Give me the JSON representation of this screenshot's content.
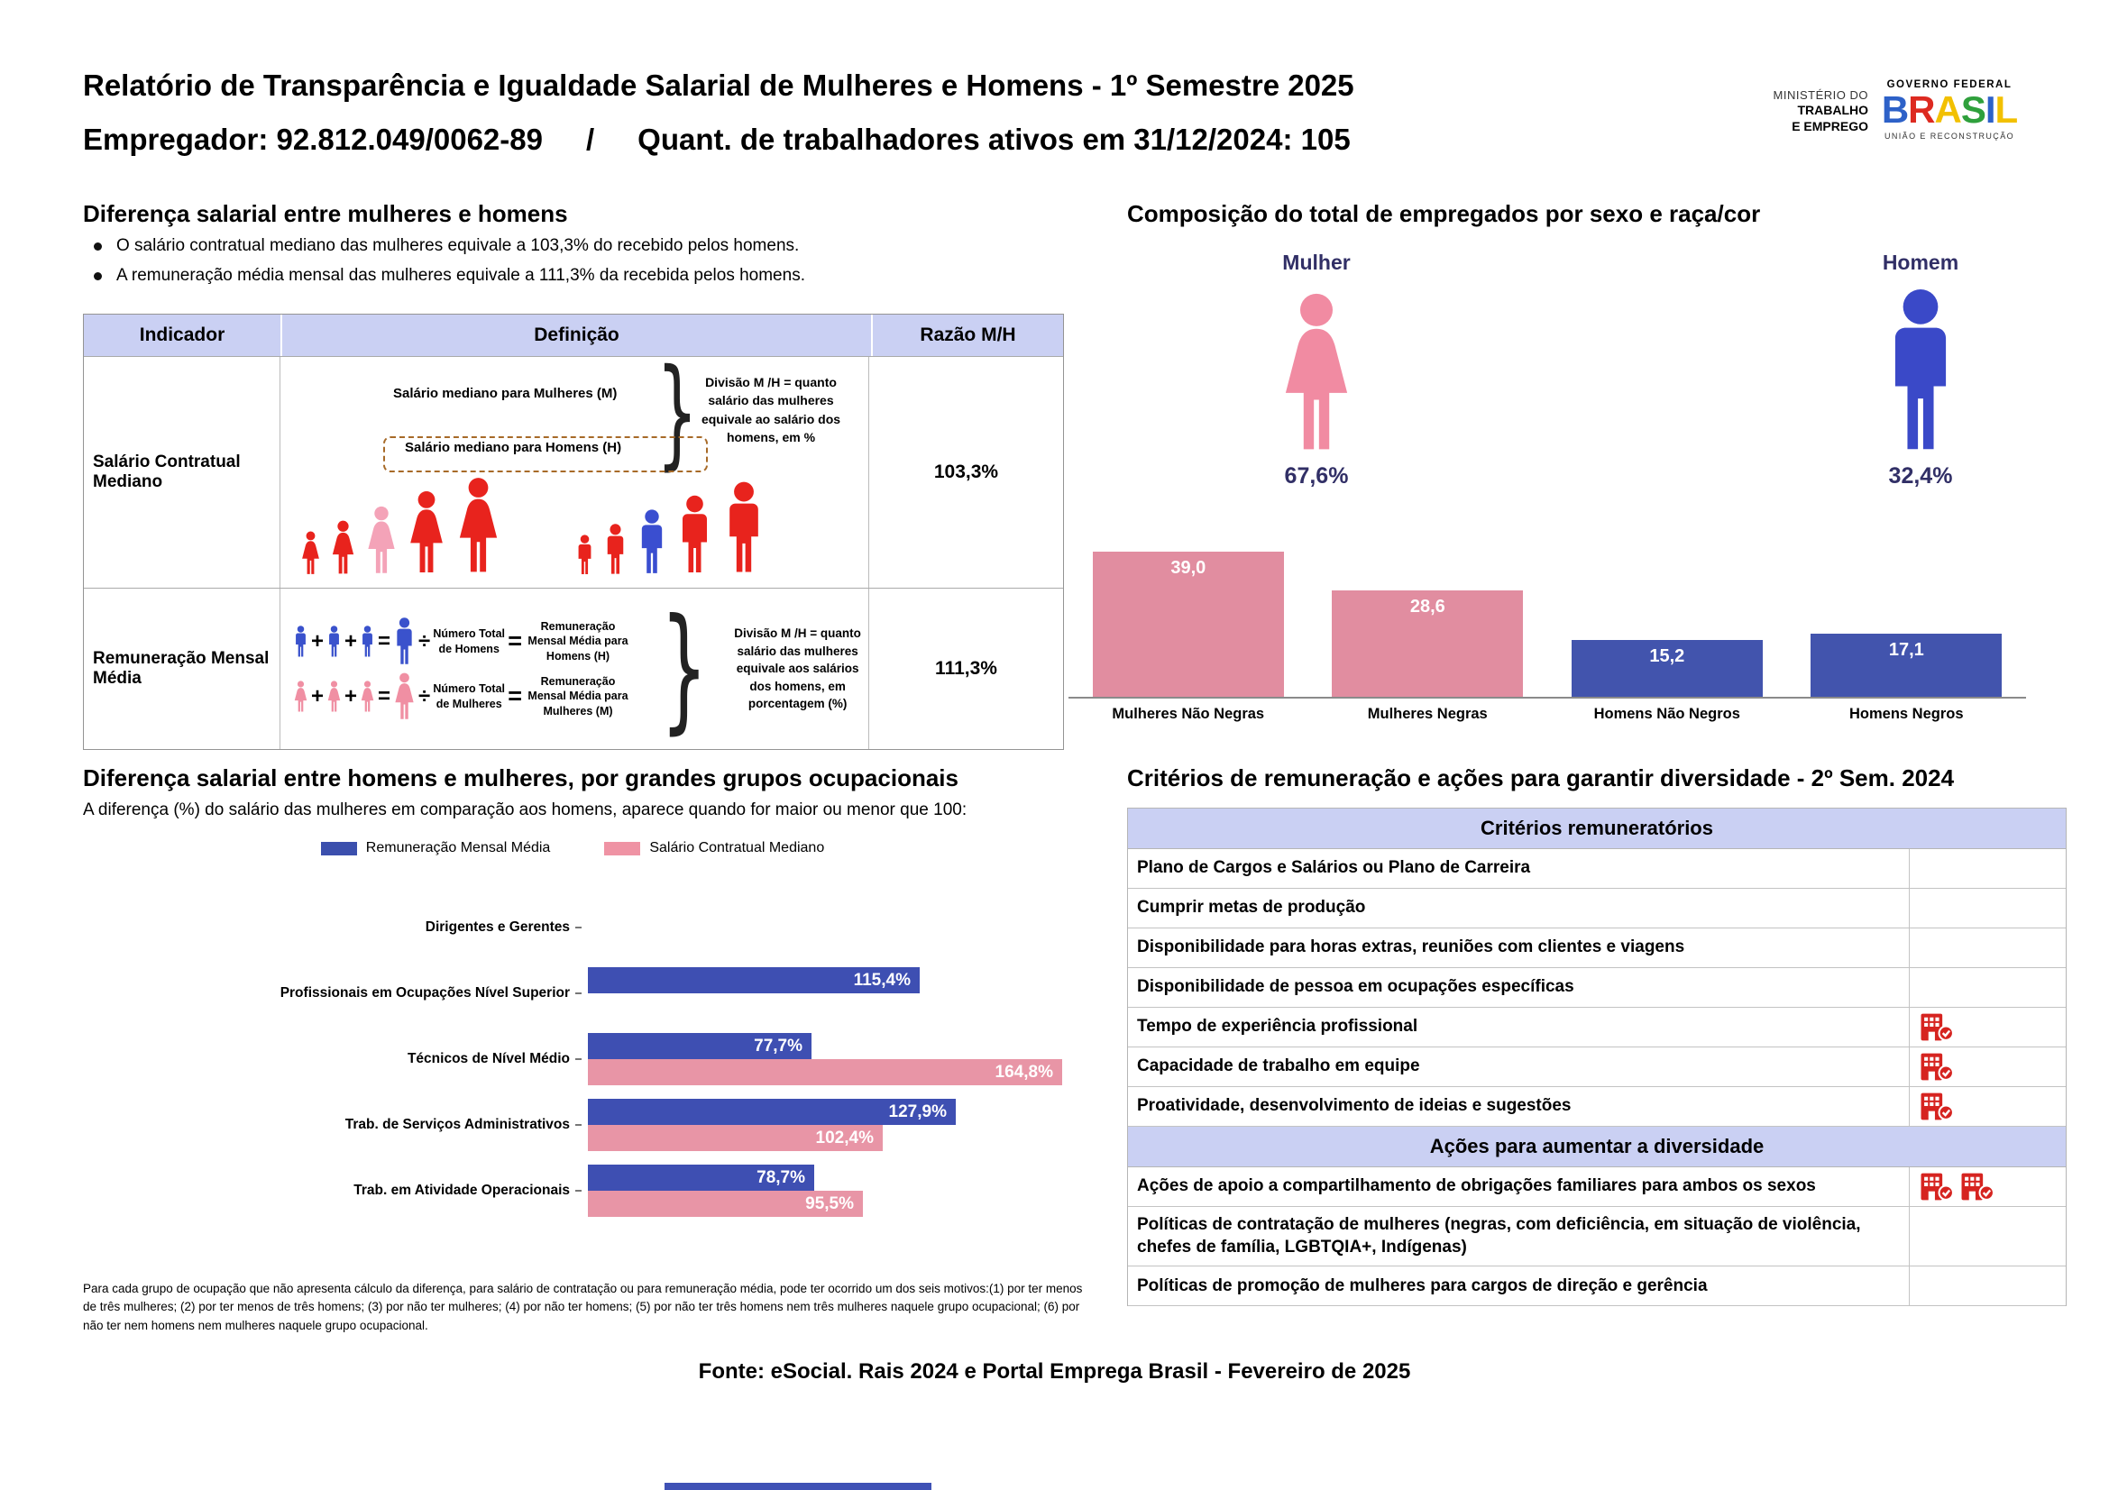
{
  "header": {
    "title": "Relatório de Transparência e Igualdade Salarial de Mulheres e Homens - 1º Semestre 2025",
    "employer": "Empregador: 92.812.049/0062-89",
    "separator": "/",
    "workers": "Quant. de trabalhadores ativos em 31/12/2024: 105",
    "ministry_lines": [
      "MINISTÉRIO DO",
      "TRABALHO",
      "E EMPREGO"
    ],
    "gov_logo": {
      "federal": "GOVERNO FEDERAL",
      "brasil_letters": [
        {
          "ch": "B",
          "color": "#2d61c8"
        },
        {
          "ch": "R",
          "color": "#dd2a20"
        },
        {
          "ch": "A",
          "color": "#f2c000"
        },
        {
          "ch": "S",
          "color": "#2fa03c"
        },
        {
          "ch": "I",
          "color": "#2d61c8"
        },
        {
          "ch": "L",
          "color": "#f2c000"
        }
      ],
      "slogan": "UNIÃO E RECONSTRUÇÃO"
    }
  },
  "salary_diff": {
    "heading": "Diferença salarial entre mulheres e homens",
    "bullets": [
      "O salário contratual mediano das mulheres equivale a 103,3% do recebido pelos homens.",
      "A remuneração média mensal das mulheres equivale a 111,3% da recebida pelos homens."
    ],
    "table": {
      "headers": [
        "Indicador",
        "Definição",
        "Razão M/H"
      ],
      "median_row": {
        "indicator": "Salário Contratual Mediano",
        "line_women": "Salário mediano para Mulheres (M)",
        "line_men": "Salário mediano para Homens (H)",
        "note": "Divisão M /H = quanto salário das mulheres equivale ao salário dos homens, em %",
        "ratio": "103,3%",
        "female_figures": [
          {
            "h": 50,
            "color": "#e8231d"
          },
          {
            "h": 62,
            "color": "#e8231d"
          },
          {
            "h": 78,
            "color": "#f4a3b8"
          },
          {
            "h": 95,
            "color": "#e8231d"
          },
          {
            "h": 110,
            "color": "#e8231d"
          }
        ],
        "male_figures": [
          {
            "h": 46,
            "color": "#e8231d"
          },
          {
            "h": 58,
            "color": "#e8231d"
          },
          {
            "h": 74,
            "color": "#3a4ed0"
          },
          {
            "h": 90,
            "color": "#e8231d"
          },
          {
            "h": 105,
            "color": "#e8231d"
          }
        ]
      },
      "mean_row": {
        "indicator": "Remuneração Mensal Média",
        "ops": {
          "plus": "+",
          "equals": "=",
          "divide": "÷"
        },
        "men": {
          "color": "#3a52cc",
          "count_label": "Número Total de Homens",
          "result_label": "Remuneração Mensal Média para Homens (H)"
        },
        "women": {
          "color": "#f08fa3",
          "count_label": "Número Total de Mulheres",
          "result_label": "Remuneração Mensal Média para Mulheres (M)"
        },
        "note": "Divisão M /H = quanto salário das mulheres equivale aos salários dos homens, em porcentagem (%)",
        "ratio": "111,3%"
      }
    }
  },
  "composition": {
    "heading": "Composição do total de empregados por sexo e raça/cor",
    "female_label": "Mulher",
    "female_pct": "67,6%",
    "female_color": "#f18ba2",
    "male_label": "Homem",
    "male_pct": "32,4%",
    "male_color": "#3a49c8"
  },
  "occupational": {
    "heading": "Diferença salarial entre homens e mulheres, por grandes grupos ocupacionais",
    "subtitle": "A diferença (%) do salário das mulheres em comparação aos homens, aparece quando for maior ou menor que 100:",
    "legend": [
      {
        "label": "Remuneração Mensal Média",
        "color": "#3b4fad"
      },
      {
        "label": "Salário Contratual Mediano",
        "color": "#ef93a4"
      }
    ],
    "footnote": "Para cada grupo de ocupação que não apresenta cálculo da diferença, para salário de contratação ou para remuneração média, pode ter ocorrido um dos seis motivos:(1) por ter menos de três mulheres; (2) por ter menos de três homens; (3) por não ter mulheres; (4) por não ter homens; (5) por não ter três homens nem três mulheres naquele grupo ocupacional; (6) por não ter nem homens nem mulheres naquele grupo ocupacional."
  },
  "criteria": {
    "heading": "Critérios de remuneração e ações para garantir diversidade - 2º Sem. 2024",
    "icon_color": "#d62420",
    "sections": [
      {
        "header": "Critérios remuneratórios",
        "rows": [
          {
            "label": "Plano de Cargos e Salários ou Plano de Carreira",
            "checks": 0
          },
          {
            "label": "Cumprir metas de produção",
            "checks": 0
          },
          {
            "label": "Disponibilidade para horas extras, reuniões com clientes e viagens",
            "checks": 0
          },
          {
            "label": "Disponibilidade de pessoa em ocupações específicas",
            "checks": 0
          },
          {
            "label": "Tempo de experiência profissional",
            "checks": 1
          },
          {
            "label": "Capacidade de trabalho em equipe",
            "checks": 1
          },
          {
            "label": "Proatividade, desenvolvimento de ideias e sugestões",
            "checks": 1
          }
        ]
      },
      {
        "header": "Ações para aumentar a diversidade",
        "rows": [
          {
            "label": "Ações de apoio a compartilhamento de obrigações familiares para ambos os sexos",
            "checks": 2
          },
          {
            "label": "Políticas de contratação de mulheres (negras, com deficiência, em situação de violência, chefes de família, LGBTQIA+, Indígenas)",
            "checks": 0
          },
          {
            "label": "Políticas de promoção de mulheres para cargos de direção e gerência",
            "checks": 0
          }
        ]
      }
    ]
  },
  "footer": "Fonte: eSocial. Rais 2024 e Portal Emprega Brasil - Fevereiro de 2025",
  "chart_data": [
    {
      "id": "composition-by-sex-race",
      "type": "bar",
      "title": "Composição do total de empregados por sexo e raça/cor",
      "categories": [
        "Mulheres Não Negras",
        "Mulheres Negras",
        "Homens Não Negros",
        "Homens Negros"
      ],
      "values": [
        39.0,
        28.6,
        15.2,
        17.1
      ],
      "value_labels": [
        "39,0",
        "28,6",
        "15,2",
        "17,1"
      ],
      "colors": [
        "#e18da0",
        "#e18da0",
        "#4254ad",
        "#4254ad"
      ],
      "xlabel": "",
      "ylabel": "",
      "ylim": [
        0,
        42
      ],
      "grid": false,
      "legend_position": "none",
      "extra": {
        "female_total_pct": 67.6,
        "male_total_pct": 32.4
      }
    },
    {
      "id": "salary-gap-by-occupation",
      "type": "horizontal-grouped-bar",
      "title": "Diferença salarial entre homens e mulheres, por grandes grupos ocupacionais",
      "categories": [
        "Dirigentes e Gerentes",
        "Profissionais em Ocupações Nível Superior",
        "Técnicos de Nível Médio",
        "Trab. de Serviços Administrativos",
        "Trab. em Atividade Operacionais"
      ],
      "series": [
        {
          "name": "Remuneração Mensal Média",
          "color": "#3e4fb2",
          "values": [
            null,
            115.4,
            77.7,
            127.9,
            78.7
          ],
          "labels": [
            "",
            "115,4%",
            "77,7%",
            "127,9%",
            "78,7%"
          ]
        },
        {
          "name": "Salário Contratual Mediano",
          "color": "#e895a6",
          "values": [
            null,
            null,
            164.8,
            102.4,
            95.5
          ],
          "labels": [
            "",
            "",
            "164,8%",
            "102,4%",
            "95,5%"
          ]
        }
      ],
      "xlim": [
        0,
        175
      ],
      "grid": false,
      "legend_position": "top"
    }
  ]
}
